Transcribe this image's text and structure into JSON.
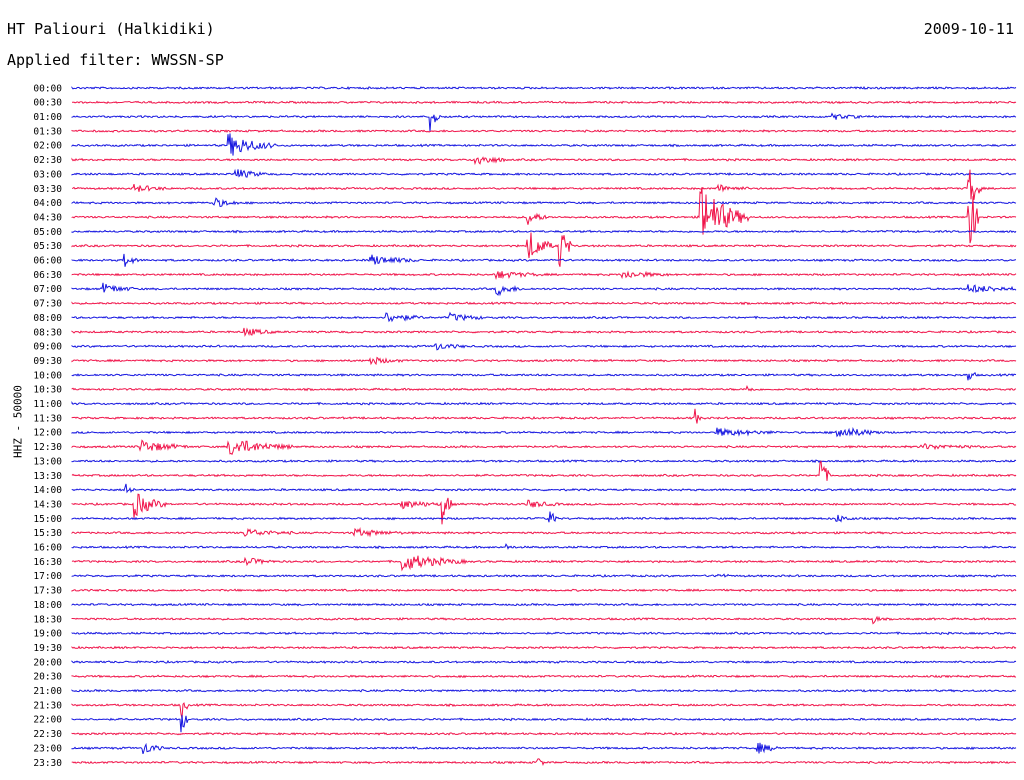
{
  "header": {
    "station": "HT Paliouri (Halkidiki)",
    "date": "2009-10-11",
    "filter_label": "Applied filter: WWSSN-SP"
  },
  "chart_data": {
    "type": "line",
    "title": "HT Paliouri (Halkidiki)",
    "ylabel": "HHZ - 50000",
    "grid": false,
    "colors": {
      "even_rows": "#1515e0",
      "odd_rows": "#f0144a"
    },
    "rows": [
      "00:00",
      "00:30",
      "01:00",
      "01:30",
      "02:00",
      "02:30",
      "03:00",
      "03:30",
      "04:00",
      "04:30",
      "05:00",
      "05:30",
      "06:00",
      "06:30",
      "07:00",
      "07:30",
      "08:00",
      "08:30",
      "09:00",
      "09:30",
      "10:00",
      "10:30",
      "11:00",
      "11:30",
      "12:00",
      "12:30",
      "13:00",
      "13:30",
      "14:00",
      "14:30",
      "15:00",
      "15:30",
      "16:00",
      "16:30",
      "17:00",
      "17:30",
      "18:00",
      "18:30",
      "19:00",
      "19:30",
      "20:00",
      "20:30",
      "21:00",
      "21:30",
      "22:00",
      "22:30",
      "23:00",
      "23:30"
    ],
    "events": [
      {
        "row": "01:00",
        "minute": 11.4,
        "amplitude": 1.2,
        "duration_min": 0.3
      },
      {
        "row": "01:00",
        "minute": 24.2,
        "amplitude": 0.2,
        "duration_min": 1.0
      },
      {
        "row": "02:00",
        "minute": 5.0,
        "amplitude": 0.9,
        "duration_min": 1.5
      },
      {
        "row": "02:30",
        "minute": 12.8,
        "amplitude": 0.5,
        "duration_min": 1.0
      },
      {
        "row": "03:00",
        "minute": 5.2,
        "amplitude": 0.4,
        "duration_min": 1.0
      },
      {
        "row": "03:30",
        "minute": 2.0,
        "amplitude": 0.3,
        "duration_min": 1.0
      },
      {
        "row": "03:30",
        "minute": 20.5,
        "amplitude": 0.3,
        "duration_min": 1.0
      },
      {
        "row": "03:30",
        "minute": 28.5,
        "amplitude": 2.0,
        "duration_min": 0.4
      },
      {
        "row": "04:00",
        "minute": 4.5,
        "amplitude": 0.4,
        "duration_min": 0.8
      },
      {
        "row": "04:30",
        "minute": 14.5,
        "amplitude": 0.6,
        "duration_min": 0.6
      },
      {
        "row": "04:30",
        "minute": 20.0,
        "amplitude": 2.5,
        "duration_min": 1.5
      },
      {
        "row": "04:30",
        "minute": 28.5,
        "amplitude": 4.0,
        "duration_min": 0.3
      },
      {
        "row": "05:30",
        "minute": 14.5,
        "amplitude": 1.3,
        "duration_min": 0.8
      },
      {
        "row": "05:30",
        "minute": 15.5,
        "amplitude": 2.0,
        "duration_min": 0.4
      },
      {
        "row": "06:00",
        "minute": 1.7,
        "amplitude": 0.5,
        "duration_min": 0.4
      },
      {
        "row": "06:00",
        "minute": 9.5,
        "amplitude": 0.4,
        "duration_min": 1.5
      },
      {
        "row": "06:30",
        "minute": 13.5,
        "amplitude": 0.3,
        "duration_min": 1.5
      },
      {
        "row": "06:30",
        "minute": 17.5,
        "amplitude": 0.3,
        "duration_min": 1.5
      },
      {
        "row": "07:00",
        "minute": 1.0,
        "amplitude": 0.4,
        "duration_min": 1.0
      },
      {
        "row": "07:00",
        "minute": 13.5,
        "amplitude": 0.5,
        "duration_min": 0.8
      },
      {
        "row": "07:00",
        "minute": 28.5,
        "amplitude": 0.3,
        "duration_min": 2.0
      },
      {
        "row": "08:00",
        "minute": 10.0,
        "amplitude": 0.4,
        "duration_min": 1.2
      },
      {
        "row": "08:00",
        "minute": 12.0,
        "amplitude": 0.3,
        "duration_min": 1.2
      },
      {
        "row": "08:30",
        "minute": 5.5,
        "amplitude": 0.3,
        "duration_min": 1.0
      },
      {
        "row": "09:00",
        "minute": 11.5,
        "amplitude": 0.3,
        "duration_min": 1.0
      },
      {
        "row": "09:30",
        "minute": 9.5,
        "amplitude": 0.3,
        "duration_min": 1.0
      },
      {
        "row": "10:00",
        "minute": 28.5,
        "amplitude": 0.7,
        "duration_min": 0.2
      },
      {
        "row": "10:30",
        "minute": 21.5,
        "amplitude": 0.3,
        "duration_min": 0.2
      },
      {
        "row": "11:30",
        "minute": 19.8,
        "amplitude": 0.7,
        "duration_min": 0.2
      },
      {
        "row": "12:00",
        "minute": 20.5,
        "amplitude": 0.3,
        "duration_min": 2.0
      },
      {
        "row": "12:00",
        "minute": 24.3,
        "amplitude": 0.5,
        "duration_min": 1.5
      },
      {
        "row": "12:30",
        "minute": 2.2,
        "amplitude": 0.5,
        "duration_min": 1.5
      },
      {
        "row": "12:30",
        "minute": 5.0,
        "amplitude": 0.7,
        "duration_min": 2.0
      },
      {
        "row": "12:30",
        "minute": 27.0,
        "amplitude": 0.2,
        "duration_min": 2.0
      },
      {
        "row": "13:30",
        "minute": 23.8,
        "amplitude": 1.5,
        "duration_min": 0.3
      },
      {
        "row": "14:00",
        "minute": 1.7,
        "amplitude": 0.6,
        "duration_min": 0.3
      },
      {
        "row": "14:30",
        "minute": 2.0,
        "amplitude": 1.0,
        "duration_min": 1.0
      },
      {
        "row": "14:30",
        "minute": 10.5,
        "amplitude": 0.3,
        "duration_min": 1.5
      },
      {
        "row": "14:30",
        "minute": 11.8,
        "amplitude": 1.5,
        "duration_min": 0.3
      },
      {
        "row": "14:30",
        "minute": 14.5,
        "amplitude": 0.3,
        "duration_min": 1.0
      },
      {
        "row": "15:00",
        "minute": 15.2,
        "amplitude": 1.0,
        "duration_min": 0.2
      },
      {
        "row": "15:00",
        "minute": 24.3,
        "amplitude": 0.3,
        "duration_min": 0.6
      },
      {
        "row": "15:30",
        "minute": 5.5,
        "amplitude": 0.3,
        "duration_min": 1.5
      },
      {
        "row": "15:30",
        "minute": 9.0,
        "amplitude": 0.3,
        "duration_min": 1.5
      },
      {
        "row": "16:00",
        "minute": 13.8,
        "amplitude": 0.2,
        "duration_min": 0.3
      },
      {
        "row": "16:30",
        "minute": 5.5,
        "amplitude": 0.3,
        "duration_min": 1.0
      },
      {
        "row": "16:30",
        "minute": 10.5,
        "amplitude": 0.7,
        "duration_min": 2.0
      },
      {
        "row": "17:00",
        "minute": 20.5,
        "amplitude": 0.2,
        "duration_min": 0.4
      },
      {
        "row": "18:30",
        "minute": 25.5,
        "amplitude": 0.4,
        "duration_min": 0.2
      },
      {
        "row": "21:30",
        "minute": 3.5,
        "amplitude": 1.0,
        "duration_min": 0.2
      },
      {
        "row": "22:00",
        "minute": 3.5,
        "amplitude": 1.0,
        "duration_min": 0.2
      },
      {
        "row": "23:00",
        "minute": 2.3,
        "amplitude": 0.5,
        "duration_min": 0.6
      },
      {
        "row": "23:00",
        "minute": 21.8,
        "amplitude": 0.4,
        "duration_min": 0.8
      },
      {
        "row": "23:30",
        "minute": 14.8,
        "amplitude": 0.5,
        "duration_min": 0.2
      }
    ]
  }
}
